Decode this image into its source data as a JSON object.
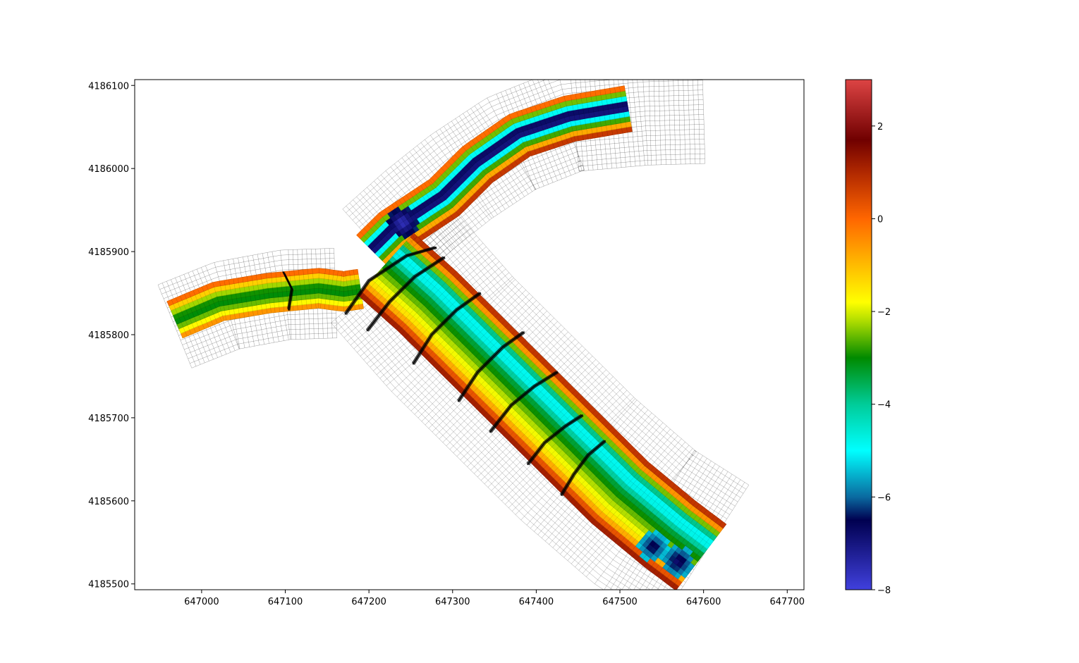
{
  "chart_data": {
    "type": "heatmap",
    "title": "",
    "xlabel": "",
    "ylabel": "",
    "xlim": [
      646920,
      647720
    ],
    "ylim": [
      4185493,
      4186107
    ],
    "xticks": [
      647000,
      647100,
      647200,
      647300,
      647400,
      647500,
      647600,
      647700
    ],
    "yticks": [
      4185500,
      4185600,
      4185700,
      4185800,
      4185900,
      4186000,
      4186100
    ],
    "colorbar": {
      "range": [
        -8,
        3
      ],
      "ticks": [
        -8,
        -6,
        -4,
        -2,
        0,
        2
      ],
      "tick_labels": [
        "−8",
        "−6",
        "−4",
        "−2",
        "0",
        "2"
      ],
      "colormap_stops": [
        {
          "v": -8.0,
          "c": "#4040dd"
        },
        {
          "v": -6.5,
          "c": "#000050"
        },
        {
          "v": -6.0,
          "c": "#0a6aa0"
        },
        {
          "v": -5.0,
          "c": "#00ffff"
        },
        {
          "v": -4.0,
          "c": "#00cc99"
        },
        {
          "v": -3.0,
          "c": "#008a00"
        },
        {
          "v": -2.2,
          "c": "#b0dd00"
        },
        {
          "v": -1.8,
          "c": "#ffff00"
        },
        {
          "v": -1.0,
          "c": "#ffbb00"
        },
        {
          "v": 0.0,
          "c": "#ff6600"
        },
        {
          "v": 1.0,
          "c": "#b02800"
        },
        {
          "v": 1.7,
          "c": "#700000"
        },
        {
          "v": 3.0,
          "c": "#dd4444"
        }
      ]
    },
    "grid": false,
    "legend": "none",
    "mesh_color": "#000000",
    "wet_domain": {
      "branches": [
        {
          "name": "west",
          "centerline": [
            [
              646968,
              4185818
            ],
            [
              647020,
              4185840
            ],
            [
              647080,
              4185850
            ],
            [
              647140,
              4185856
            ],
            [
              647170,
              4185852
            ],
            [
              647190,
              4185855
            ]
          ],
          "half_width": 24,
          "profile": [
            0.4,
            -1.0,
            -1.7,
            -2.3,
            -2.8,
            -3.1,
            -3.0,
            -2.6,
            -2.0,
            -1.2,
            -0.4,
            0.6
          ]
        },
        {
          "name": "north",
          "centerline": [
            [
              647205,
              4185900
            ],
            [
              647230,
              4185925
            ],
            [
              647260,
              4185945
            ],
            [
              647290,
              4185965
            ],
            [
              647330,
              4186005
            ],
            [
              647380,
              4186040
            ],
            [
              647440,
              4186060
            ],
            [
              647510,
              4186072
            ]
          ],
          "half_width": 28,
          "profile": [
            1.4,
            0.3,
            -1.0,
            -2.6,
            -4.5,
            -6.5,
            -7.4,
            -6.5,
            -4.8,
            -2.8,
            -0.9,
            1.2
          ]
        },
        {
          "name": "south",
          "centerline": [
            [
              647220,
              4185885
            ],
            [
              647270,
              4185840
            ],
            [
              647320,
              4185790
            ],
            [
              647380,
              4185730
            ],
            [
              647440,
              4185670
            ],
            [
              647500,
              4185610
            ],
            [
              647560,
              4185560
            ],
            [
              647597,
              4185532
            ]
          ],
          "half_width": 50,
          "profile": [
            1.5,
            0.6,
            -0.8,
            -1.6,
            -2.0,
            -2.4,
            -2.9,
            -3.4,
            -4.3,
            -5.2,
            -4.2,
            -2.4,
            0.0,
            1.3
          ]
        }
      ],
      "deep_spots": [
        {
          "x": 647240,
          "y": 4185935,
          "v": -7.8
        },
        {
          "x": 647540,
          "y": 4185545,
          "v": -6.8
        },
        {
          "x": 647570,
          "y": 4185527,
          "v": -7.0
        }
      ]
    },
    "dry_mesh": {
      "branches": [
        {
          "name": "west",
          "centerline": [
            [
              646968,
              4185810
            ],
            [
              647030,
              4185835
            ],
            [
              647100,
              4185848
            ],
            [
              647160,
              4185850
            ]
          ],
          "half_width": 54
        },
        {
          "name": "north",
          "centerline": [
            [
              647210,
              4185905
            ],
            [
              647260,
              4185950
            ],
            [
              647310,
              4185990
            ],
            [
              647370,
              4186030
            ],
            [
              647440,
              4186058
            ],
            [
              647530,
              4186066
            ],
            [
              647600,
              4186068
            ]
          ],
          "half_width": 62
        },
        {
          "name": "south",
          "centerline": [
            [
              647230,
              4185880
            ],
            [
              647300,
              4185800
            ],
            [
              647380,
              4185720
            ],
            [
              647450,
              4185650
            ],
            [
              647530,
              4185580
            ],
            [
              647600,
              4185535
            ]
          ],
          "half_width": 100
        }
      ]
    },
    "cross_section_tracks": [
      [
        [
          647098,
          4185875
        ],
        [
          647108,
          4185855
        ],
        [
          647104,
          4185830
        ]
      ],
      [
        [
          647172,
          4185825
        ],
        [
          647200,
          4185865
        ],
        [
          647245,
          4185895
        ],
        [
          647280,
          4185905
        ]
      ],
      [
        [
          647198,
          4185805
        ],
        [
          647225,
          4185840
        ],
        [
          647255,
          4185870
        ],
        [
          647290,
          4185893
        ]
      ],
      [
        [
          647253,
          4185765
        ],
        [
          647275,
          4185800
        ],
        [
          647305,
          4185830
        ],
        [
          647333,
          4185850
        ]
      ],
      [
        [
          647307,
          4185720
        ],
        [
          647330,
          4185755
        ],
        [
          647360,
          4185785
        ],
        [
          647385,
          4185803
        ]
      ],
      [
        [
          647345,
          4185683
        ],
        [
          647370,
          4185715
        ],
        [
          647398,
          4185738
        ],
        [
          647425,
          4185755
        ]
      ],
      [
        [
          647390,
          4185644
        ],
        [
          647410,
          4185670
        ],
        [
          647435,
          4185690
        ],
        [
          647455,
          4185703
        ]
      ],
      [
        [
          647430,
          4185607
        ],
        [
          647445,
          4185632
        ],
        [
          647462,
          4185655
        ],
        [
          647482,
          4185672
        ]
      ]
    ]
  }
}
